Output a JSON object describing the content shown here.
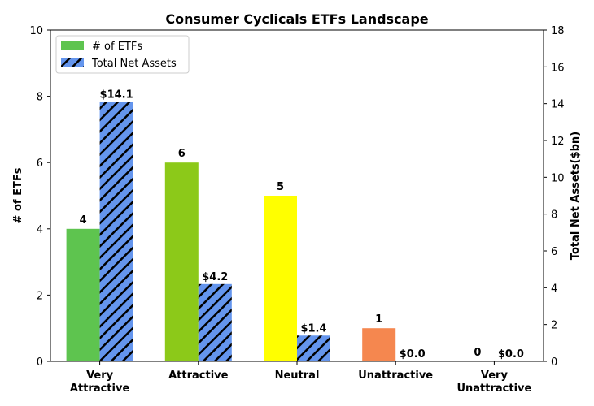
{
  "chart_data": {
    "type": "bar",
    "title": "Consumer Cyclicals ETFs Landscape",
    "categories": [
      [
        "Very",
        "Attractive"
      ],
      [
        "Attractive"
      ],
      [
        "Neutral"
      ],
      [
        "Unattractive"
      ],
      [
        "Very",
        "Unattractive"
      ]
    ],
    "ylabel": "# of ETFs",
    "y2label": "Total Net Assets($bn)",
    "ylim": [
      0,
      10
    ],
    "y2lim": [
      0,
      18
    ],
    "yticks": [
      0,
      2,
      4,
      6,
      8,
      10
    ],
    "y2ticks": [
      0,
      2,
      4,
      6,
      8,
      10,
      12,
      14,
      16,
      18
    ],
    "legend_position": "top-left",
    "series": [
      {
        "name": "# of ETFs",
        "axis": "left",
        "values": [
          4,
          6,
          5,
          1,
          0
        ],
        "labels": [
          "4",
          "6",
          "5",
          "1",
          "0"
        ],
        "colors": [
          "#5ec44f",
          "#8cc919",
          "#ffff00",
          "#f5874f",
          "#e53935"
        ],
        "legend_color": "#5ec44f"
      },
      {
        "name": "Total Net Assets",
        "axis": "right",
        "values": [
          14.1,
          4.2,
          1.4,
          0.0,
          0.0
        ],
        "labels": [
          "$14.1",
          "$4.2",
          "$1.4",
          "$0.0",
          "$0.0"
        ],
        "color": "#6495ed",
        "hatch": "diagonal"
      }
    ]
  }
}
